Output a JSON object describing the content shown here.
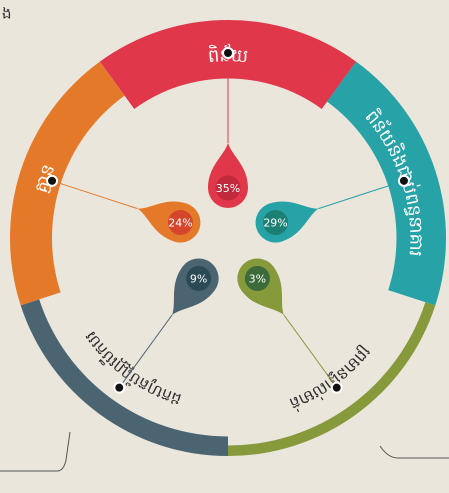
{
  "chart_data": {
    "type": "donut",
    "corner_text": "ង",
    "categories": [
      "ពិន័យ",
      "ពិន័យនិងជាប់ពន្ធនាគារ",
      "ព្រមានផ្ទាល់មាត់",
      "ដកហូតប័ណ្ណបើកបរ",
      "គ្មាន"
    ],
    "values": [
      35,
      29,
      3,
      9,
      24
    ],
    "value_labels": [
      "35%",
      "29%",
      "3%",
      "9%",
      "24%"
    ],
    "colors": [
      "#e0374b",
      "#27a2a6",
      "#86993b",
      "#4a6472",
      "#e5792a"
    ],
    "inner_colors": [
      "#c02a3c",
      "#1c7f74",
      "#3d6a3a",
      "#2c4a55",
      "#d4462c"
    ]
  }
}
